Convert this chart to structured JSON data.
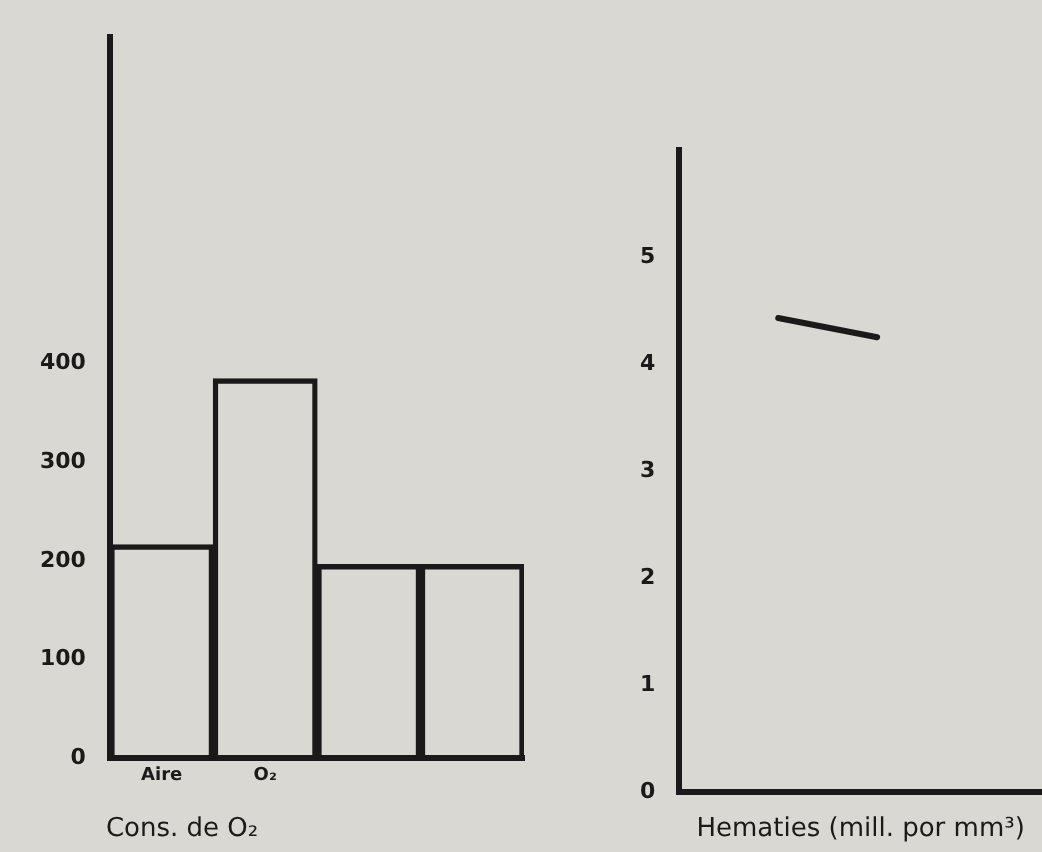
{
  "chart_data": [
    {
      "type": "bar",
      "xlabel": "Cons. de O₂",
      "categories": [
        "Aire",
        "O₂",
        null,
        null
      ],
      "values": [
        216,
        384,
        196,
        196
      ],
      "color": "#1a1a1a",
      "ylim": [
        0,
        730
      ],
      "yticks": [
        0,
        100,
        200,
        300,
        400
      ],
      "grid": false,
      "legend": false
    },
    {
      "type": "line",
      "xlabel": "Hematies (mill. por mm³)",
      "categories": [
        null,
        null,
        null,
        null,
        null,
        null,
        null,
        null,
        null,
        null,
        null,
        null
      ],
      "values": [
        null,
        null,
        null,
        4.43,
        null,
        null,
        4.25,
        null,
        null,
        null,
        null,
        null
      ],
      "color": "#1a1a1a",
      "ylim": [
        0,
        6
      ],
      "yticks": [
        0,
        1,
        2,
        3,
        4,
        5
      ],
      "grid": false,
      "legend": false,
      "tick_labels": "y",
      "marker": "none",
      "line_style": "solid"
    }
  ]
}
